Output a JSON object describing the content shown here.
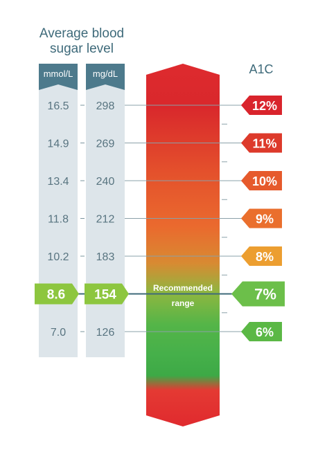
{
  "header": {
    "title_line1": "Average blood",
    "title_line2": "sugar level",
    "mmol_label": "mmol/L",
    "mgdl_label": "mg/dL",
    "a1c_label": "A1C"
  },
  "rows": [
    {
      "mmol": "16.5",
      "mgdl": "298",
      "a1c": "12%",
      "color": "#d9242c"
    },
    {
      "mmol": "14.9",
      "mgdl": "269",
      "a1c": "11%",
      "color": "#dd3a2b"
    },
    {
      "mmol": "13.4",
      "mgdl": "240",
      "a1c": "10%",
      "color": "#e65a2c"
    },
    {
      "mmol": "11.8",
      "mgdl": "212",
      "a1c": "9%",
      "color": "#ea6f2d"
    },
    {
      "mmol": "10.2",
      "mgdl": "183",
      "a1c": "8%",
      "color": "#ec9e30"
    },
    {
      "mmol": "8.6",
      "mgdl": "154",
      "a1c": "7%",
      "color": "#6cbf4a",
      "highlight": true
    },
    {
      "mmol": "7.0",
      "mgdl": "126",
      "a1c": "6%",
      "color": "#5bb845"
    }
  ],
  "recommended": {
    "line1": "Recommended",
    "line2": "range"
  },
  "colors": {
    "column_header": "#4d7a8c",
    "column_body": "#dde5ea",
    "text_value": "#587480",
    "highlight_green": "#8dc63f",
    "line": "#6d8a96"
  }
}
